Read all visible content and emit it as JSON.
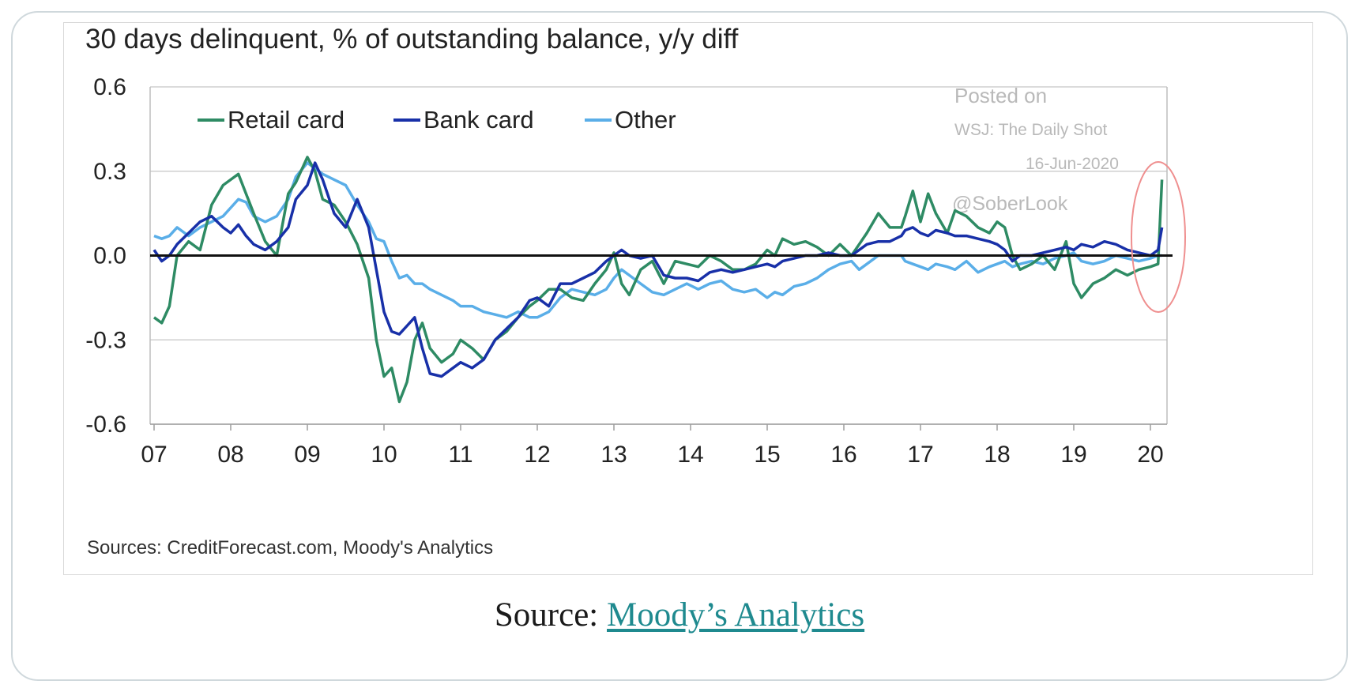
{
  "chart_data": {
    "type": "line",
    "title": "30 days delinquent, % of outstanding balance, y/y diff",
    "source_note": "Sources: CreditForecast.com, Moody's Analytics",
    "xlabel": "",
    "ylabel": "",
    "xlim": [
      2007,
      2020.3
    ],
    "ylim": [
      -0.6,
      0.6
    ],
    "y_ticks": [
      0.6,
      0.3,
      0.0,
      -0.3,
      -0.6
    ],
    "y_tick_labels": [
      "0.6",
      "0.3",
      "0.0",
      "-0.3",
      "-0.6"
    ],
    "x_ticks": [
      2007,
      2008,
      2009,
      2010,
      2011,
      2012,
      2013,
      2014,
      2015,
      2016,
      2017,
      2018,
      2019,
      2020
    ],
    "x_tick_labels": [
      "07",
      "08",
      "09",
      "10",
      "11",
      "12",
      "13",
      "14",
      "15",
      "16",
      "17",
      "18",
      "19",
      "20"
    ],
    "grid": "horizontal",
    "zero_line": true,
    "legend_position": "top-left",
    "series": [
      {
        "name": "Retail card",
        "color": "#2e8b64",
        "x": [
          2007.0,
          2007.1,
          2007.2,
          2007.3,
          2007.45,
          2007.6,
          2007.75,
          2007.9,
          2008.0,
          2008.1,
          2008.2,
          2008.3,
          2008.45,
          2008.6,
          2008.75,
          2008.85,
          2009.0,
          2009.1,
          2009.2,
          2009.35,
          2009.5,
          2009.65,
          2009.8,
          2009.9,
          2010.0,
          2010.1,
          2010.2,
          2010.3,
          2010.4,
          2010.5,
          2010.6,
          2010.75,
          2010.9,
          2011.0,
          2011.15,
          2011.3,
          2011.45,
          2011.6,
          2011.75,
          2011.9,
          2012.0,
          2012.15,
          2012.3,
          2012.45,
          2012.6,
          2012.75,
          2012.9,
          2013.0,
          2013.1,
          2013.2,
          2013.35,
          2013.5,
          2013.65,
          2013.8,
          2013.95,
          2014.1,
          2014.25,
          2014.4,
          2014.55,
          2014.7,
          2014.85,
          2015.0,
          2015.1,
          2015.2,
          2015.35,
          2015.5,
          2015.65,
          2015.8,
          2015.95,
          2016.1,
          2016.2,
          2016.3,
          2016.45,
          2016.6,
          2016.75,
          2016.8,
          2016.9,
          2017.0,
          2017.1,
          2017.2,
          2017.35,
          2017.45,
          2017.6,
          2017.75,
          2017.9,
          2018.0,
          2018.1,
          2018.2,
          2018.3,
          2018.45,
          2018.6,
          2018.75,
          2018.9,
          2019.0,
          2019.1,
          2019.25,
          2019.4,
          2019.55,
          2019.7,
          2019.85,
          2020.0,
          2020.1,
          2020.15
        ],
        "values": [
          -0.22,
          -0.24,
          -0.18,
          0.0,
          0.05,
          0.02,
          0.18,
          0.25,
          0.27,
          0.29,
          0.22,
          0.15,
          0.05,
          0.0,
          0.22,
          0.26,
          0.35,
          0.3,
          0.2,
          0.18,
          0.12,
          0.04,
          -0.08,
          -0.3,
          -0.43,
          -0.4,
          -0.52,
          -0.45,
          -0.3,
          -0.24,
          -0.33,
          -0.38,
          -0.35,
          -0.3,
          -0.33,
          -0.37,
          -0.3,
          -0.27,
          -0.22,
          -0.18,
          -0.16,
          -0.12,
          -0.12,
          -0.15,
          -0.16,
          -0.1,
          -0.05,
          0.01,
          -0.1,
          -0.14,
          -0.05,
          -0.02,
          -0.1,
          -0.02,
          -0.03,
          -0.04,
          0.0,
          -0.02,
          -0.05,
          -0.05,
          -0.03,
          0.02,
          0.0,
          0.06,
          0.04,
          0.05,
          0.03,
          0.0,
          0.04,
          0.0,
          0.04,
          0.08,
          0.15,
          0.1,
          0.1,
          0.14,
          0.23,
          0.12,
          0.22,
          0.15,
          0.08,
          0.16,
          0.14,
          0.1,
          0.08,
          0.12,
          0.1,
          0.0,
          -0.05,
          -0.03,
          0.0,
          -0.05,
          0.05,
          -0.1,
          -0.15,
          -0.1,
          -0.08,
          -0.05,
          -0.07,
          -0.05,
          -0.04,
          -0.03,
          0.27
        ]
      },
      {
        "name": "Bank card",
        "color": "#1830a8",
        "x": [
          2007.0,
          2007.1,
          2007.2,
          2007.3,
          2007.45,
          2007.6,
          2007.75,
          2007.9,
          2008.0,
          2008.1,
          2008.2,
          2008.3,
          2008.45,
          2008.6,
          2008.75,
          2008.85,
          2009.0,
          2009.1,
          2009.2,
          2009.35,
          2009.5,
          2009.65,
          2009.8,
          2009.9,
          2010.0,
          2010.1,
          2010.2,
          2010.3,
          2010.4,
          2010.5,
          2010.6,
          2010.75,
          2010.9,
          2011.0,
          2011.15,
          2011.3,
          2011.45,
          2011.6,
          2011.75,
          2011.9,
          2012.0,
          2012.15,
          2012.3,
          2012.45,
          2012.6,
          2012.75,
          2012.9,
          2013.0,
          2013.1,
          2013.2,
          2013.35,
          2013.5,
          2013.65,
          2013.8,
          2013.95,
          2014.1,
          2014.25,
          2014.4,
          2014.55,
          2014.7,
          2014.85,
          2015.0,
          2015.1,
          2015.2,
          2015.35,
          2015.5,
          2015.65,
          2015.8,
          2015.95,
          2016.1,
          2016.2,
          2016.3,
          2016.45,
          2016.6,
          2016.75,
          2016.8,
          2016.9,
          2017.0,
          2017.1,
          2017.2,
          2017.35,
          2017.45,
          2017.6,
          2017.75,
          2017.9,
          2018.0,
          2018.1,
          2018.2,
          2018.3,
          2018.45,
          2018.6,
          2018.75,
          2018.9,
          2019.0,
          2019.1,
          2019.25,
          2019.4,
          2019.55,
          2019.7,
          2019.85,
          2020.0,
          2020.1,
          2020.15
        ],
        "values": [
          0.02,
          -0.02,
          0.0,
          0.04,
          0.08,
          0.12,
          0.14,
          0.1,
          0.08,
          0.11,
          0.07,
          0.04,
          0.02,
          0.05,
          0.1,
          0.2,
          0.25,
          0.33,
          0.27,
          0.15,
          0.1,
          0.2,
          0.1,
          -0.05,
          -0.2,
          -0.27,
          -0.28,
          -0.25,
          -0.22,
          -0.33,
          -0.42,
          -0.43,
          -0.4,
          -0.38,
          -0.4,
          -0.37,
          -0.3,
          -0.26,
          -0.22,
          -0.16,
          -0.15,
          -0.18,
          -0.1,
          -0.1,
          -0.08,
          -0.06,
          -0.02,
          0.0,
          0.02,
          0.0,
          -0.01,
          0.0,
          -0.07,
          -0.08,
          -0.08,
          -0.09,
          -0.06,
          -0.05,
          -0.06,
          -0.05,
          -0.04,
          -0.03,
          -0.04,
          -0.02,
          -0.01,
          0.0,
          0.0,
          0.01,
          0.0,
          0.0,
          0.02,
          0.04,
          0.05,
          0.05,
          0.07,
          0.09,
          0.1,
          0.08,
          0.07,
          0.09,
          0.08,
          0.07,
          0.07,
          0.06,
          0.05,
          0.04,
          0.02,
          -0.02,
          0.0,
          0.0,
          0.01,
          0.02,
          0.03,
          0.02,
          0.04,
          0.03,
          0.05,
          0.04,
          0.02,
          0.01,
          0.0,
          0.02,
          0.1
        ]
      },
      {
        "name": "Other",
        "color": "#5aaee8",
        "x": [
          2007.0,
          2007.1,
          2007.2,
          2007.3,
          2007.45,
          2007.6,
          2007.75,
          2007.9,
          2008.0,
          2008.1,
          2008.2,
          2008.3,
          2008.45,
          2008.6,
          2008.75,
          2008.85,
          2009.0,
          2009.1,
          2009.2,
          2009.35,
          2009.5,
          2009.65,
          2009.8,
          2009.9,
          2010.0,
          2010.1,
          2010.2,
          2010.3,
          2010.4,
          2010.5,
          2010.6,
          2010.75,
          2010.9,
          2011.0,
          2011.15,
          2011.3,
          2011.45,
          2011.6,
          2011.75,
          2011.9,
          2012.0,
          2012.15,
          2012.3,
          2012.45,
          2012.6,
          2012.75,
          2012.9,
          2013.0,
          2013.1,
          2013.2,
          2013.35,
          2013.5,
          2013.65,
          2013.8,
          2013.95,
          2014.1,
          2014.25,
          2014.4,
          2014.55,
          2014.7,
          2014.85,
          2015.0,
          2015.1,
          2015.2,
          2015.35,
          2015.5,
          2015.65,
          2015.8,
          2015.95,
          2016.1,
          2016.2,
          2016.3,
          2016.45,
          2016.6,
          2016.75,
          2016.8,
          2016.9,
          2017.0,
          2017.1,
          2017.2,
          2017.35,
          2017.45,
          2017.6,
          2017.75,
          2017.9,
          2018.0,
          2018.1,
          2018.2,
          2018.3,
          2018.45,
          2018.6,
          2018.75,
          2018.9,
          2019.0,
          2019.1,
          2019.25,
          2019.4,
          2019.55,
          2019.7,
          2019.85,
          2020.0,
          2020.1,
          2020.15
        ],
        "values": [
          0.07,
          0.06,
          0.07,
          0.1,
          0.07,
          0.1,
          0.12,
          0.14,
          0.17,
          0.2,
          0.19,
          0.14,
          0.12,
          0.14,
          0.2,
          0.28,
          0.33,
          0.31,
          0.29,
          0.27,
          0.25,
          0.18,
          0.12,
          0.06,
          0.05,
          -0.02,
          -0.08,
          -0.07,
          -0.1,
          -0.1,
          -0.12,
          -0.14,
          -0.16,
          -0.18,
          -0.18,
          -0.2,
          -0.21,
          -0.22,
          -0.2,
          -0.22,
          -0.22,
          -0.2,
          -0.15,
          -0.12,
          -0.13,
          -0.14,
          -0.12,
          -0.08,
          -0.05,
          -0.07,
          -0.1,
          -0.13,
          -0.14,
          -0.12,
          -0.1,
          -0.12,
          -0.1,
          -0.09,
          -0.12,
          -0.13,
          -0.12,
          -0.15,
          -0.13,
          -0.14,
          -0.11,
          -0.1,
          -0.08,
          -0.05,
          -0.03,
          -0.02,
          -0.05,
          -0.03,
          0.0,
          0.0,
          0.0,
          -0.02,
          -0.03,
          -0.04,
          -0.05,
          -0.03,
          -0.04,
          -0.05,
          -0.02,
          -0.06,
          -0.04,
          -0.03,
          -0.02,
          -0.04,
          -0.03,
          -0.02,
          -0.03,
          -0.01,
          0.0,
          0.01,
          -0.02,
          -0.03,
          -0.02,
          0.0,
          -0.01,
          -0.02,
          -0.01,
          0.0,
          0.0
        ]
      }
    ],
    "watermark": [
      "Posted on",
      "WSJ: The Daily Shot",
      "16-Jun-2020",
      "@SoberLook"
    ]
  },
  "caption": {
    "prefix": "Source:",
    "link_text": "Moody’s Analytics"
  }
}
